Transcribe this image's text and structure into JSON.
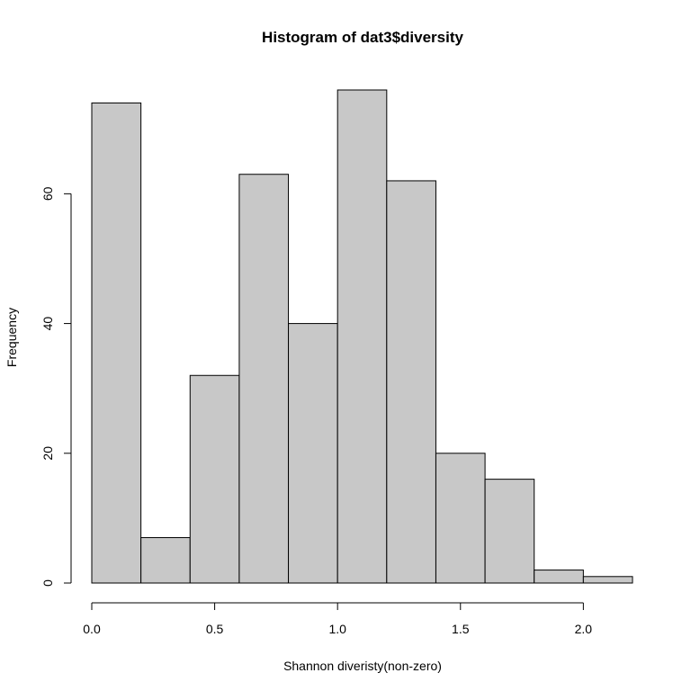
{
  "chart_data": {
    "type": "bar",
    "title": "Histogram of dat3$diversity",
    "xlabel": "Shannon diveristy(non-zero)",
    "ylabel": "Frequency",
    "bins": [
      {
        "start": 0.0,
        "end": 0.2,
        "value": 74
      },
      {
        "start": 0.2,
        "end": 0.4,
        "value": 7
      },
      {
        "start": 0.4,
        "end": 0.6,
        "value": 32
      },
      {
        "start": 0.6,
        "end": 0.8,
        "value": 63
      },
      {
        "start": 0.8,
        "end": 1.0,
        "value": 40
      },
      {
        "start": 1.0,
        "end": 1.2,
        "value": 76
      },
      {
        "start": 1.2,
        "end": 1.4,
        "value": 62
      },
      {
        "start": 1.4,
        "end": 1.6,
        "value": 20
      },
      {
        "start": 1.6,
        "end": 1.8,
        "value": 16
      },
      {
        "start": 1.8,
        "end": 2.0,
        "value": 2
      },
      {
        "start": 2.0,
        "end": 2.2,
        "value": 1
      }
    ],
    "xlim": [
      0.0,
      2.2
    ],
    "ylim": [
      0,
      76
    ],
    "x_ticks": [
      0.0,
      0.5,
      1.0,
      1.5,
      2.0
    ],
    "x_tick_labels": [
      "0.0",
      "0.5",
      "1.0",
      "1.5",
      "2.0"
    ],
    "y_ticks": [
      0,
      20,
      40,
      60
    ],
    "y_tick_labels": [
      "0",
      "20",
      "40",
      "60"
    ],
    "grid": false,
    "legend": "none",
    "bar_color": "#c8c8c8",
    "edge_color": "#000000"
  }
}
